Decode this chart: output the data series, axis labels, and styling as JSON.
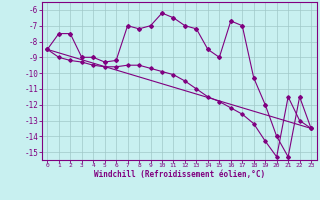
{
  "title": "",
  "xlabel": "Windchill (Refroidissement éolien,°C)",
  "ylabel": "",
  "bg_color": "#c8f0f0",
  "line_color": "#800080",
  "grid_color": "#a0c8c8",
  "ylim": [
    -15.5,
    -5.5
  ],
  "xlim": [
    -0.5,
    23.5
  ],
  "yticks": [
    -15,
    -14,
    -13,
    -12,
    -11,
    -10,
    -9,
    -8,
    -7,
    -6
  ],
  "xticks": [
    0,
    1,
    2,
    3,
    4,
    5,
    6,
    7,
    8,
    9,
    10,
    11,
    12,
    13,
    14,
    15,
    16,
    17,
    18,
    19,
    20,
    21,
    22,
    23
  ],
  "series1_x": [
    0,
    1,
    2,
    3,
    4,
    5,
    6,
    7,
    8,
    9,
    10,
    11,
    12,
    13,
    14,
    15,
    16,
    17,
    18,
    19,
    20,
    21,
    22,
    23
  ],
  "series1_y": [
    -8.5,
    -7.5,
    -7.5,
    -9.0,
    -9.0,
    -9.3,
    -9.2,
    -7.0,
    -7.2,
    -7.0,
    -6.2,
    -6.5,
    -7.0,
    -7.2,
    -8.5,
    -9.0,
    -6.7,
    -7.0,
    -10.3,
    -12.0,
    -14.0,
    -15.3,
    -11.5,
    -13.5
  ],
  "series2_x": [
    0,
    1,
    2,
    3,
    4,
    5,
    6,
    7,
    8,
    9,
    10,
    11,
    12,
    13,
    14,
    15,
    16,
    17,
    18,
    19,
    20,
    21,
    22,
    23
  ],
  "series2_y": [
    -8.5,
    -9.0,
    -9.2,
    -9.3,
    -9.5,
    -9.6,
    -9.6,
    -9.5,
    -9.5,
    -9.7,
    -9.9,
    -10.1,
    -10.5,
    -11.0,
    -11.5,
    -11.8,
    -12.2,
    -12.6,
    -13.2,
    -14.3,
    -15.3,
    -11.5,
    -13.0,
    -13.5
  ],
  "trend_x": [
    0,
    23
  ],
  "trend_y": [
    -8.5,
    -13.5
  ]
}
